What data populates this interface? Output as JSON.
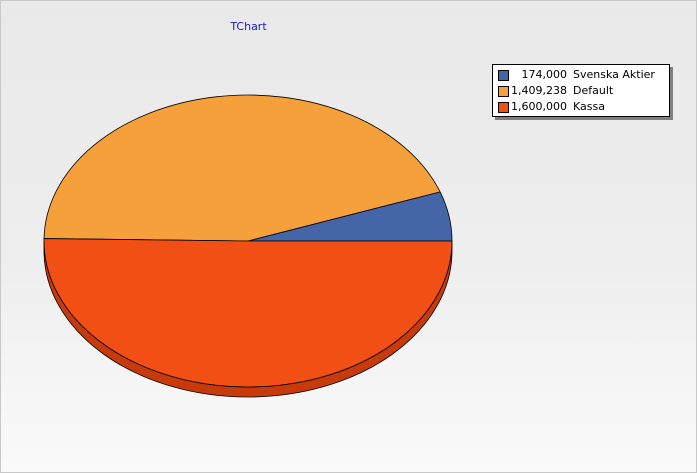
{
  "chart_data": {
    "type": "pie",
    "title": "TChart",
    "legend_position": "top-right",
    "slices": [
      {
        "label": "Svenska Aktier",
        "display_value": "174,000",
        "value": 174000,
        "color": "#4466a6",
        "side_color": "#2f4a80"
      },
      {
        "label": "Default",
        "display_value": "1,409,238",
        "value": 1409238,
        "color": "#f5a03a",
        "side_color": "#c97a1e"
      },
      {
        "label": "Kassa",
        "display_value": "1,600,000",
        "value": 1600000,
        "color": "#f24f15",
        "side_color": "#c73a0b"
      }
    ]
  }
}
